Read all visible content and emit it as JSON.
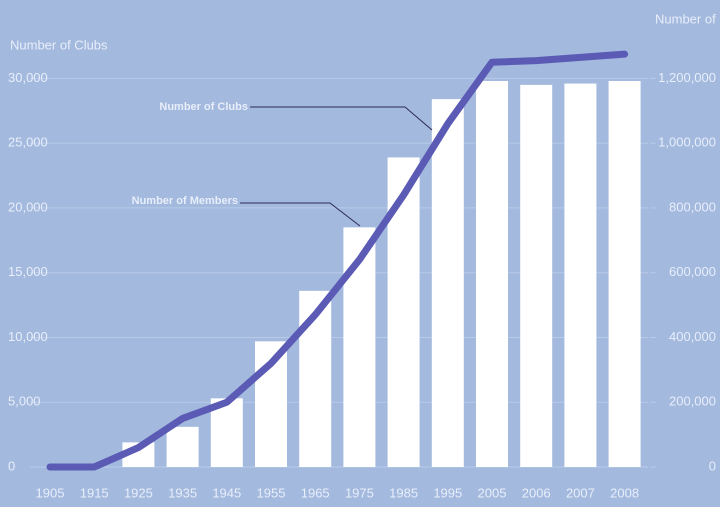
{
  "chart_data": {
    "type": "bar_line",
    "y_label": "Number of Clubs",
    "y2_label": "Number of Members",
    "annotations": [
      "Number of Clubs",
      "Number of Members"
    ],
    "categories": [
      "1905",
      "1915",
      "1925",
      "1935",
      "1945",
      "1955",
      "1965",
      "1975",
      "1985",
      "1995",
      "2005",
      "2006",
      "2007",
      "2008"
    ],
    "series": [
      {
        "name": "Number of Clubs",
        "type": "bar",
        "color": "#ffffff",
        "values": [
          0,
          0,
          1900,
          3100,
          5300,
          9700,
          13600,
          18500,
          23900,
          28400,
          29800,
          29500,
          29600,
          29800
        ]
      },
      {
        "name": "Number of Members",
        "type": "line",
        "axis": "y2",
        "color": "#5b5bb5",
        "values": [
          0,
          0,
          60000,
          150000,
          200000,
          320000,
          470000,
          640000,
          840000,
          1060000,
          1250000,
          1255000,
          1265000,
          1275000
        ]
      }
    ],
    "ylim": [
      0,
      32500
    ],
    "yticks": [
      0,
      {
        "value": 5000,
        "label": "5,000"
      },
      {
        "value": 10000,
        "label": "10,000"
      },
      {
        "value": 15000,
        "label": "15,000"
      },
      {
        "value": 20000,
        "label": "20,000"
      },
      {
        "value": 25000,
        "label": "25,000"
      },
      {
        "value": 30000,
        "label": "30,000"
      }
    ],
    "y2lim": [
      0,
      1300000
    ],
    "y2ticks": [
      0,
      {
        "value": 200000,
        "label": "200,000"
      },
      {
        "value": 400000,
        "label": "400,000"
      },
      {
        "value": 600000,
        "label": "600,000"
      },
      {
        "value": 800000,
        "label": "800,000"
      },
      {
        "value": 1000000,
        "label": "1,000,000"
      },
      {
        "value": 1200000,
        "label": "1,200,000"
      }
    ],
    "grid": true
  }
}
